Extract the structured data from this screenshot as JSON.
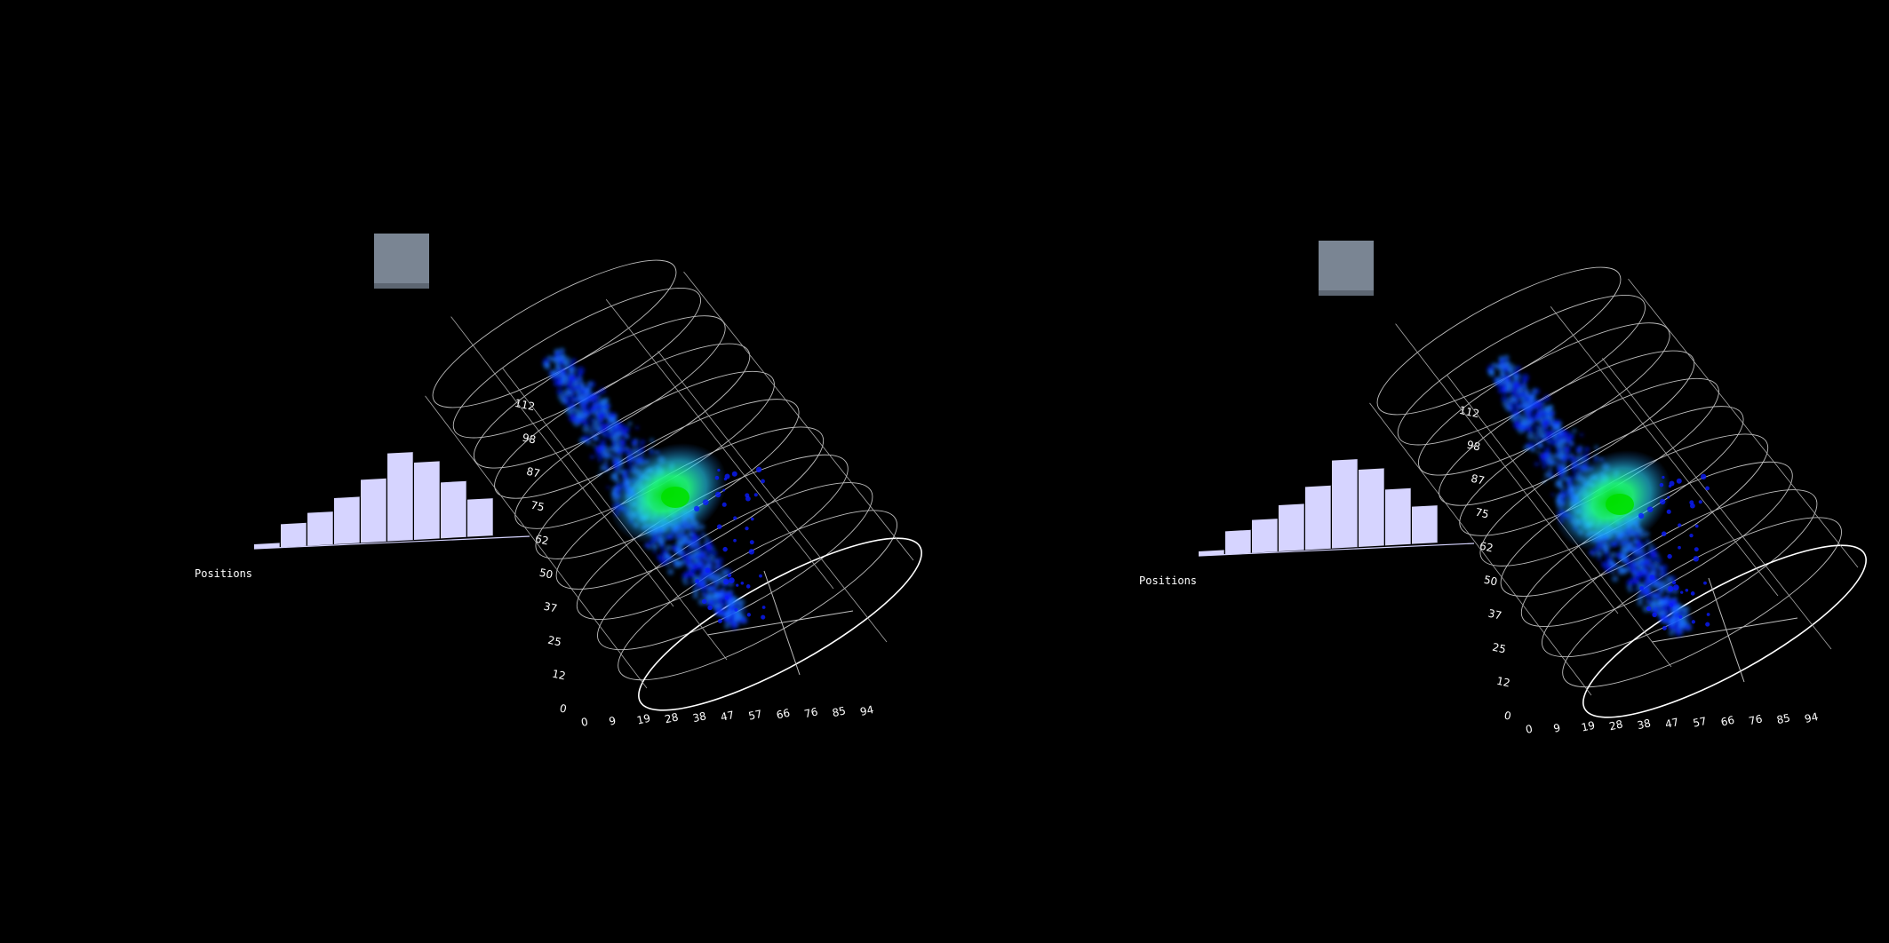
{
  "scene": {
    "background": "#000000",
    "histogram": {
      "label": "Positions",
      "bar_color": "#d6d4ff",
      "relative_heights": [
        0.05,
        0.26,
        0.37,
        0.52,
        0.71,
        0.99,
        0.87,
        0.63,
        0.42
      ]
    },
    "panel_color": "#7a8593",
    "axes": {
      "x_ticks": [
        "0",
        "9",
        "19",
        "28",
        "38",
        "47",
        "57",
        "66",
        "76",
        "85",
        "94"
      ],
      "y_ticks": [
        "0",
        "12",
        "25",
        "37",
        "50",
        "62",
        "75",
        "87",
        "98",
        "112"
      ]
    },
    "cloud_colors": [
      "#0a1cff",
      "#1e7bff",
      "#27d6ff",
      "#22ff80",
      "#00e000"
    ]
  },
  "chart_data": {
    "type": "bar",
    "title": "",
    "xlabel": "Positions",
    "ylabel": "",
    "values": [
      0.05,
      0.26,
      0.37,
      0.52,
      0.71,
      0.99,
      0.87,
      0.63,
      0.42
    ]
  }
}
